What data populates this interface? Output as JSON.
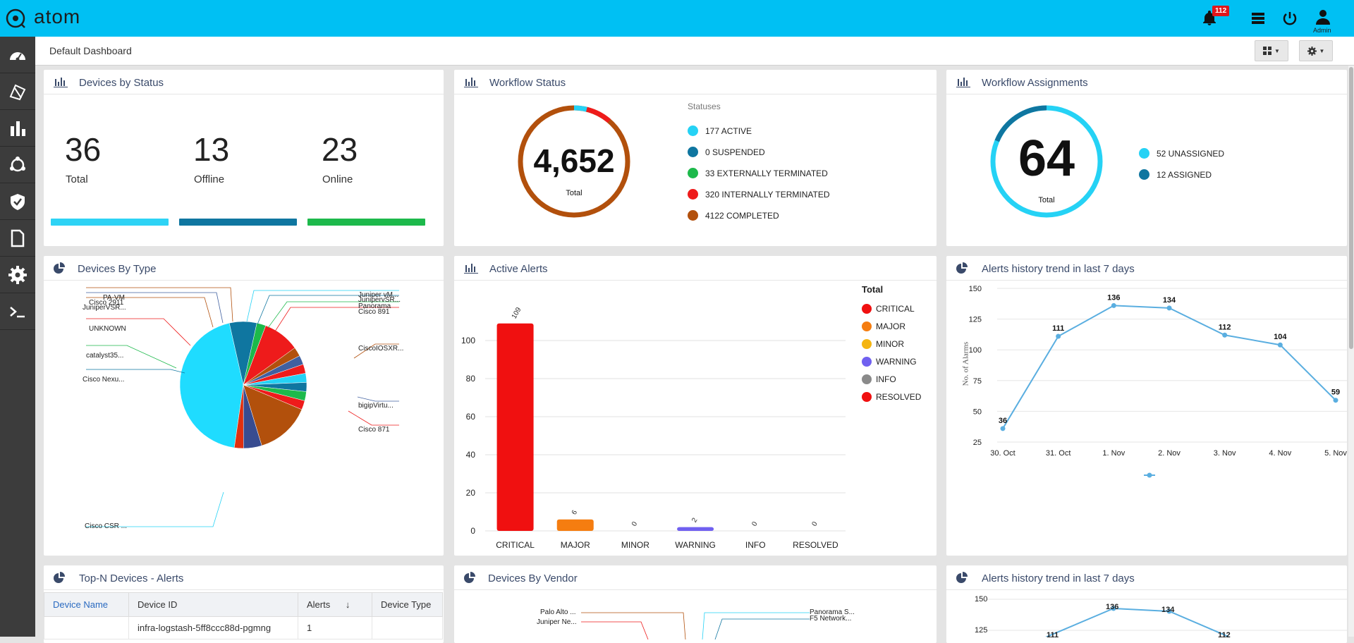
{
  "app": {
    "name": "atom",
    "notifications": "112",
    "user": "Admin"
  },
  "header": {
    "dashboard_title": "Default Dashboard"
  },
  "icons": [
    "logo-icon",
    "bell-icon",
    "list-icon",
    "power-icon",
    "user-icon",
    "dashboard-icon",
    "devices-icon",
    "analytics-icon",
    "workflow-icon",
    "security-icon",
    "document-icon",
    "settings-icon",
    "terminal-icon",
    "grid-icon",
    "gear-icon"
  ],
  "devices_by_status": {
    "title": "Devices by Status",
    "items": [
      {
        "value": "36",
        "label": "Total",
        "color": "#2ed3f5"
      },
      {
        "value": "13",
        "label": "Offline",
        "color": "#0f76a0"
      },
      {
        "value": "23",
        "label": "Online",
        "color": "#1db94b"
      }
    ]
  },
  "workflow_status": {
    "title": "Workflow Status",
    "total": "4,652",
    "total_label": "Total",
    "legend_title": "Statuses",
    "legend": [
      {
        "label": "177 ACTIVE",
        "color": "#25d2f5",
        "value": 177
      },
      {
        "label": "0 SUSPENDED",
        "color": "#0f76a0",
        "value": 0
      },
      {
        "label": "33 EXTERNALLY TERMINATED",
        "color": "#1db94b",
        "value": 33
      },
      {
        "label": "320 INTERNALLY TERMINATED",
        "color": "#ee1b1b",
        "value": 320
      },
      {
        "label": "4122 COMPLETED",
        "color": "#b2500c",
        "value": 4122
      }
    ]
  },
  "workflow_assignments": {
    "title": "Workflow Assignments",
    "total": "64",
    "total_label": "Total",
    "legend": [
      {
        "label": "52 UNASSIGNED",
        "color": "#25d2f5",
        "value": 52
      },
      {
        "label": "12 ASSIGNED",
        "color": "#0f76a0",
        "value": 12
      }
    ]
  },
  "devices_by_type": {
    "title": "Devices By Type",
    "labels": [
      "PA-VM",
      "Cisco 2911",
      "JuniperVSR...",
      "UNKNOWN",
      "catalyst35...",
      "Cisco Nexu...",
      "Cisco CSR ...",
      "Juniper vM...",
      "JunipervSR...",
      "Panorama",
      "Cisco 891",
      "CiscoIOSXR...",
      "bigipVirtu...",
      "Cisco 871"
    ]
  },
  "active_alerts": {
    "title": "Active Alerts",
    "legend_title": "Total",
    "legend": [
      {
        "label": "CRITICAL",
        "color": "#f01010"
      },
      {
        "label": "MAJOR",
        "color": "#f57d10"
      },
      {
        "label": "MINOR",
        "color": "#f5b510"
      },
      {
        "label": "WARNING",
        "color": "#7060f0"
      },
      {
        "label": "INFO",
        "color": "#8a8a8a"
      },
      {
        "label": "RESOLVED",
        "color": "#f01010"
      }
    ],
    "yticks": [
      "0",
      "20",
      "40",
      "60",
      "80",
      "100"
    ]
  },
  "alerts_trend": {
    "title": "Alerts history trend in last 7 days",
    "ylabel": "No. of Alarms",
    "yticks": [
      "25",
      "50",
      "75",
      "100",
      "125",
      "150"
    ]
  },
  "alerts_trend_2": {
    "title": "Alerts history trend in last 7 days",
    "yticks": [
      "125",
      "150"
    ],
    "labels": [
      "111",
      "136",
      "134",
      "112"
    ]
  },
  "top_n": {
    "title": "Top-N Devices - Alerts",
    "columns": [
      "Device Name",
      "Device ID",
      "Alerts",
      "Device Type"
    ],
    "rows": [
      {
        "device_name": "",
        "device_id": "infra-logstash-5ff8ccc88d-pgmng",
        "alerts": "1",
        "device_type": ""
      }
    ]
  },
  "devices_by_vendor": {
    "title": "Devices By Vendor",
    "labels": [
      "Palo Alto ...",
      "Juniper Ne...",
      "Panorama S...",
      "F5 Network..."
    ]
  },
  "chart_data": [
    {
      "type": "bar",
      "title": "Active Alerts",
      "categories": [
        "CRITICAL",
        "MAJOR",
        "MINOR",
        "WARNING",
        "INFO",
        "RESOLVED"
      ],
      "values": [
        109,
        6,
        0,
        2,
        0,
        0
      ],
      "ylim": [
        0,
        110
      ],
      "legend": "right"
    },
    {
      "type": "line",
      "title": "Alerts history trend in last 7 days",
      "ylabel": "No. of Alarms",
      "x": [
        "30. Oct",
        "31. Oct",
        "1. Nov",
        "2. Nov",
        "3. Nov",
        "4. Nov",
        "5. Nov"
      ],
      "series": [
        {
          "values": [
            36,
            111,
            136,
            134,
            112,
            104,
            59
          ]
        }
      ],
      "ylim": [
        25,
        150
      ]
    },
    {
      "type": "pie",
      "title": "Devices By Type",
      "categories": [
        "Cisco CSR ...",
        "Cisco Nexu...",
        "catalyst35...",
        "UNKNOWN",
        "JuniperVSR...",
        "Cisco 2911",
        "PA-VM",
        "Juniper vM...",
        "JunipervSR...",
        "Panorama",
        "Cisco 891",
        "CiscoIOSXR...",
        "bigipVirtu...",
        "Cisco 871"
      ],
      "values": [
        38,
        6,
        2,
        8,
        2,
        2,
        2,
        2,
        2,
        2,
        2,
        12,
        4,
        2
      ]
    }
  ]
}
